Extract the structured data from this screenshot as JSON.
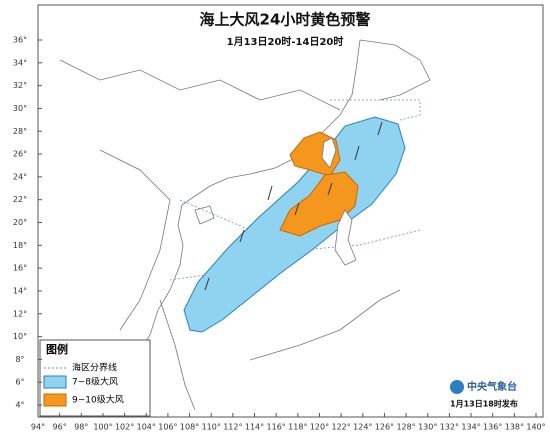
{
  "header": {
    "title": "海上大风24小时黄色预警",
    "subtitle": "1月13日20时-14日20时"
  },
  "axes": {
    "latitude_labels": [
      "36°",
      "34°",
      "32°",
      "30°",
      "28°",
      "26°",
      "24°",
      "22°",
      "20°",
      "18°",
      "16°",
      "14°",
      "12°",
      "10°",
      "8°",
      "6°",
      "4°"
    ],
    "longitude_labels": [
      "94°",
      "96°",
      "98°",
      "100°",
      "102°",
      "104°",
      "106°",
      "108°",
      "110°",
      "112°",
      "114°",
      "116°",
      "118°",
      "120°",
      "122°",
      "124°",
      "126°",
      "128°",
      "130°",
      "132°",
      "134°",
      "136°",
      "138°",
      "140°"
    ]
  },
  "legend": {
    "title": "图例",
    "items": [
      "海区分界线",
      "7~8级大风",
      "9~10级大风"
    ]
  },
  "footer": {
    "agency": "中央气象台",
    "issued": "1月13日18时发布"
  }
}
